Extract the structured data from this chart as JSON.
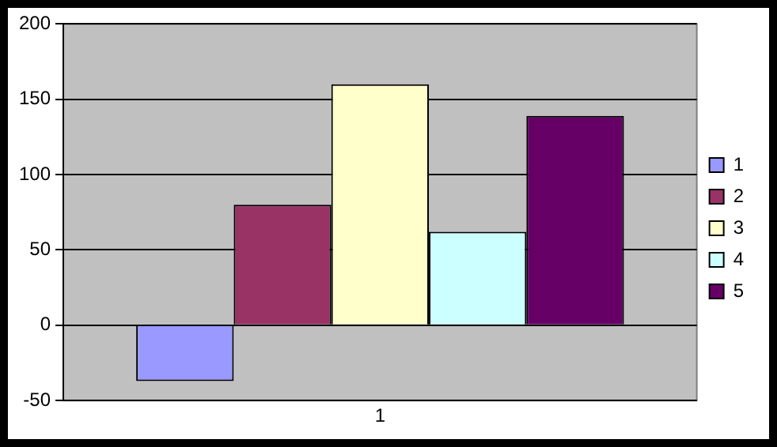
{
  "chart_data": {
    "type": "bar",
    "categories": [
      "1"
    ],
    "series": [
      {
        "name": "1",
        "color": "#9999ff",
        "values": [
          -37
        ]
      },
      {
        "name": "2",
        "color": "#993366",
        "values": [
          80
        ]
      },
      {
        "name": "3",
        "color": "#ffffcc",
        "values": [
          160
        ]
      },
      {
        "name": "4",
        "color": "#ccffff",
        "values": [
          62
        ]
      },
      {
        "name": "5",
        "color": "#660066",
        "values": [
          139
        ]
      }
    ],
    "ylim": [
      -50,
      200
    ],
    "yticks": [
      -50,
      0,
      50,
      100,
      150,
      200
    ],
    "grid": "y",
    "legend": "right"
  }
}
